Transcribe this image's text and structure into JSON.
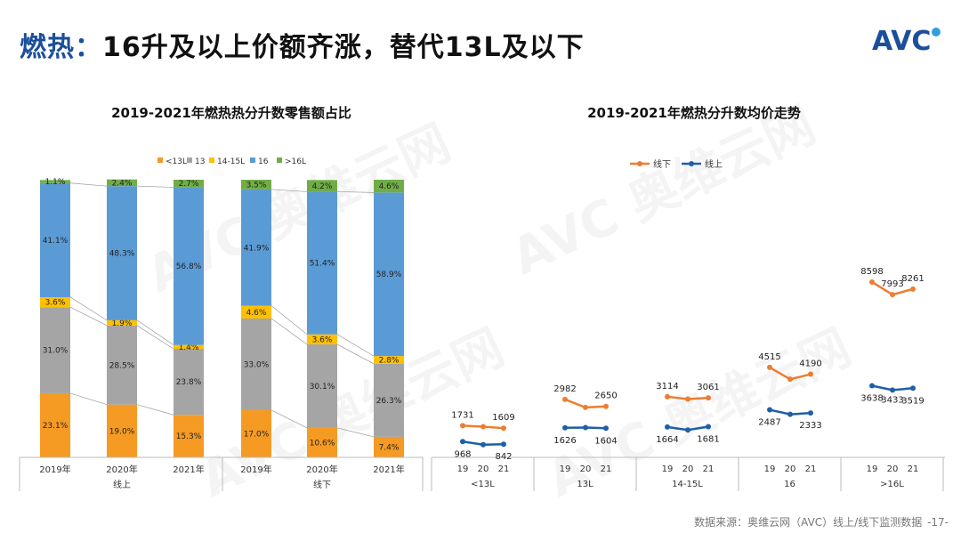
{
  "header": {
    "title_prefix": "燃热：",
    "title_main": "16升及以上价额齐涨，替代13L及以下",
    "logo_text": "AVC",
    "logo_colors": [
      "#1b4f9c",
      "#2fa0da"
    ]
  },
  "footer": {
    "source": "数据来源：奥维云网（AVC）线上/线下监测数据",
    "page": "-17-"
  },
  "colors": {
    "lt13": "#f59a23",
    "c13": "#a5a5a5",
    "c14_15": "#ffc000",
    "c16": "#5b9bd5",
    "gt16": "#70ad47",
    "offline": "#ed7d31",
    "online": "#1f5fa8"
  },
  "chart_data": [
    {
      "type": "bar",
      "stacked": "percent",
      "title": "2019-2021年燃热热分升数零售额占比",
      "legend": [
        "<13L",
        "13",
        "14-15L",
        "16",
        ">16L"
      ],
      "legend_position": "top",
      "groups": [
        "线上",
        "线下"
      ],
      "categories": [
        "2019年",
        "2020年",
        "2021年",
        "2019年",
        "2020年",
        "2021年"
      ],
      "series": [
        {
          "name": "<13L",
          "values": [
            23.1,
            19.0,
            15.3,
            17.0,
            10.6,
            7.4
          ]
        },
        {
          "name": "13",
          "values": [
            31.0,
            28.5,
            23.8,
            33.0,
            30.1,
            26.3
          ]
        },
        {
          "name": "14-15L",
          "values": [
            3.6,
            1.9,
            1.4,
            4.6,
            3.6,
            2.8
          ]
        },
        {
          "name": "16",
          "values": [
            41.1,
            48.3,
            56.8,
            41.9,
            51.4,
            58.9
          ]
        },
        {
          "name": ">16L",
          "values": [
            1.1,
            2.4,
            2.7,
            3.5,
            4.2,
            4.6
          ]
        }
      ],
      "labels": [
        [
          "23.1%",
          "19.0%",
          "15.3%",
          "17.0%",
          "10.6%",
          "7.4%"
        ],
        [
          "31.0%",
          "28.5%",
          "23.8%",
          "33.0%",
          "30.1%",
          "26.3%"
        ],
        [
          "3.6%",
          "1.9%",
          "1.4%",
          "4.6%",
          "3.6%",
          "2.8%"
        ],
        [
          "41.1%",
          "48.3%",
          "56.8%",
          "41.9%",
          "51.4%",
          "58.9%"
        ],
        [
          "1.1%",
          "2.4%",
          "2.7%",
          "3.5%",
          "4.2%",
          "4.6%"
        ]
      ]
    },
    {
      "type": "line",
      "title": "2019-2021年燃热分升数均价走势",
      "legend": [
        "线下",
        "线上"
      ],
      "legend_position": "top",
      "groups": [
        "<13L",
        "13L",
        "14-15L",
        "16",
        ">16L"
      ],
      "x": [
        "19",
        "20",
        "21"
      ],
      "ylim": [
        0,
        10000
      ],
      "series": [
        {
          "name": "线下",
          "values": [
            [
              1731,
              1680,
              1609
            ],
            [
              2982,
              2600,
              2650
            ],
            [
              3114,
              3000,
              3061
            ],
            [
              4515,
              3950,
              4190
            ],
            [
              8598,
              7993,
              8261
            ]
          ]
        },
        {
          "name": "线上",
          "values": [
            [
              968,
              820,
              842
            ],
            [
              1626,
              1640,
              1604
            ],
            [
              1664,
              1520,
              1681
            ],
            [
              2487,
              2270,
              2333
            ],
            [
              3638,
              3433,
              3519
            ]
          ]
        }
      ],
      "data_labels": {
        "线下": [
          [
            "1731",
            "",
            "1609"
          ],
          [
            "2982",
            "",
            "2650"
          ],
          [
            "3114",
            "",
            "3061"
          ],
          [
            "4515",
            "",
            "4190"
          ],
          [
            "8598",
            "7993",
            "8261"
          ]
        ],
        "线上": [
          [
            "968",
            "",
            "842"
          ],
          [
            "1626",
            "",
            "1604"
          ],
          [
            "1664",
            "",
            "1681"
          ],
          [
            "2487",
            "",
            "2333"
          ],
          [
            "3638",
            "3433",
            "3519"
          ]
        ]
      }
    }
  ]
}
